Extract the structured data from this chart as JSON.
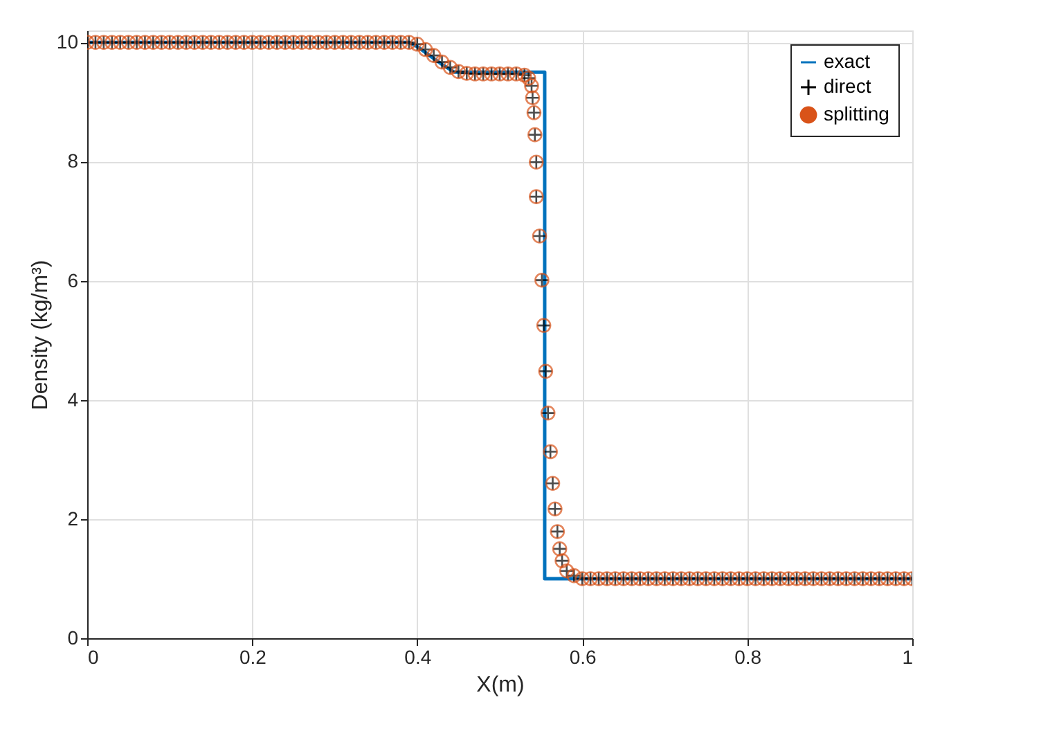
{
  "chart_data": {
    "type": "line",
    "xlabel": "X(m)",
    "ylabel": "Density (kg/m³)",
    "xlim": [
      0,
      1
    ],
    "ylim": [
      0,
      10.2
    ],
    "xticks": [
      0,
      0.2,
      0.4,
      0.6,
      0.8,
      1
    ],
    "yticks": [
      0,
      2,
      4,
      6,
      8,
      10
    ],
    "grid": true,
    "legend": "top right",
    "series": [
      {
        "name": "exact",
        "color": "#0072bd",
        "marker": "none",
        "line_style": "solid",
        "x": [
          0,
          0.39,
          0.4,
          0.415,
          0.43,
          0.445,
          0.5545,
          0.5545,
          0.578,
          1
        ],
        "values": [
          10,
          10,
          9.93,
          9.78,
          9.63,
          9.5,
          9.5,
          1,
          1,
          1
        ]
      },
      {
        "name": "direct",
        "type": "scatter",
        "color": "#000000",
        "marker": "cross",
        "x": [
          0,
          0.01,
          0.02,
          0.03,
          0.04,
          0.05,
          0.06,
          0.07,
          0.08,
          0.09,
          0.1,
          0.11,
          0.12,
          0.13,
          0.14,
          0.15,
          0.16,
          0.17,
          0.18,
          0.19,
          0.2,
          0.21,
          0.22,
          0.23,
          0.24,
          0.25,
          0.26,
          0.27,
          0.28,
          0.29,
          0.3,
          0.31,
          0.32,
          0.33,
          0.34,
          0.35,
          0.36,
          0.37,
          0.38,
          0.39,
          0.4,
          0.41,
          0.42,
          0.43,
          0.44,
          0.45,
          0.46,
          0.47,
          0.48,
          0.49,
          0.5,
          0.51,
          0.52,
          0.53,
          0.535,
          0.5386,
          0.5398,
          0.5415,
          0.5426,
          0.5443,
          0.5443,
          0.5483,
          0.5511,
          0.5534,
          0.5557,
          0.5585,
          0.5614,
          0.5642,
          0.567,
          0.5699,
          0.5727,
          0.5756,
          0.5812,
          0.59,
          0.6,
          0.61,
          0.62,
          0.63,
          0.64,
          0.65,
          0.66,
          0.67,
          0.68,
          0.69,
          0.7,
          0.71,
          0.72,
          0.73,
          0.74,
          0.75,
          0.76,
          0.77,
          0.78,
          0.79,
          0.8,
          0.81,
          0.82,
          0.83,
          0.84,
          0.85,
          0.86,
          0.87,
          0.88,
          0.89,
          0.9,
          0.91,
          0.92,
          0.93,
          0.94,
          0.95,
          0.96,
          0.97,
          0.98,
          0.99,
          1
        ],
        "values": [
          10,
          10,
          10,
          10,
          10,
          10,
          10,
          10,
          10,
          10,
          10,
          10,
          10,
          10,
          10,
          10,
          10,
          10,
          10,
          10,
          10,
          10,
          10,
          10,
          10,
          10,
          10,
          10,
          10,
          10,
          10,
          10,
          10,
          10,
          10,
          10,
          10,
          10,
          10,
          10,
          9.97,
          9.88,
          9.78,
          9.67,
          9.58,
          9.51,
          9.48,
          9.47,
          9.47,
          9.47,
          9.47,
          9.47,
          9.47,
          9.45,
          9.4,
          9.27,
          9.07,
          8.82,
          8.45,
          7.99,
          7.41,
          6.75,
          6.01,
          5.25,
          4.48,
          3.78,
          3.13,
          2.6,
          2.17,
          1.79,
          1.5,
          1.3,
          1.13,
          1.05,
          1,
          1,
          1,
          1,
          1,
          1,
          1,
          1,
          1,
          1,
          1,
          1,
          1,
          1,
          1,
          1,
          1,
          1,
          1,
          1,
          1,
          1,
          1,
          1,
          1,
          1,
          1,
          1,
          1,
          1,
          1,
          1,
          1,
          1,
          1,
          1,
          1,
          1,
          1,
          1,
          1
        ]
      },
      {
        "name": "splitting",
        "type": "scatter",
        "color": "#d95319",
        "marker": "circle",
        "x": [
          0,
          0.01,
          0.02,
          0.03,
          0.04,
          0.05,
          0.06,
          0.07,
          0.08,
          0.09,
          0.1,
          0.11,
          0.12,
          0.13,
          0.14,
          0.15,
          0.16,
          0.17,
          0.18,
          0.19,
          0.2,
          0.21,
          0.22,
          0.23,
          0.24,
          0.25,
          0.26,
          0.27,
          0.28,
          0.29,
          0.3,
          0.31,
          0.32,
          0.33,
          0.34,
          0.35,
          0.36,
          0.37,
          0.38,
          0.39,
          0.4,
          0.41,
          0.42,
          0.43,
          0.44,
          0.45,
          0.46,
          0.47,
          0.48,
          0.49,
          0.5,
          0.51,
          0.52,
          0.53,
          0.535,
          0.5386,
          0.5398,
          0.5415,
          0.5426,
          0.5443,
          0.5443,
          0.5483,
          0.5511,
          0.5534,
          0.5557,
          0.5585,
          0.5614,
          0.5642,
          0.567,
          0.5699,
          0.5727,
          0.5756,
          0.5812,
          0.59,
          0.6,
          0.61,
          0.62,
          0.63,
          0.64,
          0.65,
          0.66,
          0.67,
          0.68,
          0.69,
          0.7,
          0.71,
          0.72,
          0.73,
          0.74,
          0.75,
          0.76,
          0.77,
          0.78,
          0.79,
          0.8,
          0.81,
          0.82,
          0.83,
          0.84,
          0.85,
          0.86,
          0.87,
          0.88,
          0.89,
          0.9,
          0.91,
          0.92,
          0.93,
          0.94,
          0.95,
          0.96,
          0.97,
          0.98,
          0.99,
          1
        ],
        "values": [
          10,
          10,
          10,
          10,
          10,
          10,
          10,
          10,
          10,
          10,
          10,
          10,
          10,
          10,
          10,
          10,
          10,
          10,
          10,
          10,
          10,
          10,
          10,
          10,
          10,
          10,
          10,
          10,
          10,
          10,
          10,
          10,
          10,
          10,
          10,
          10,
          10,
          10,
          10,
          10,
          9.97,
          9.88,
          9.78,
          9.67,
          9.58,
          9.51,
          9.48,
          9.47,
          9.47,
          9.47,
          9.47,
          9.47,
          9.47,
          9.45,
          9.4,
          9.27,
          9.07,
          8.82,
          8.45,
          7.99,
          7.41,
          6.75,
          6.01,
          5.25,
          4.48,
          3.78,
          3.13,
          2.6,
          2.17,
          1.79,
          1.5,
          1.3,
          1.13,
          1.05,
          1,
          1,
          1,
          1,
          1,
          1,
          1,
          1,
          1,
          1,
          1,
          1,
          1,
          1,
          1,
          1,
          1,
          1,
          1,
          1,
          1,
          1,
          1,
          1,
          1,
          1,
          1,
          1,
          1,
          1,
          1,
          1,
          1,
          1,
          1,
          1,
          1,
          1,
          1,
          1,
          1
        ]
      }
    ]
  }
}
